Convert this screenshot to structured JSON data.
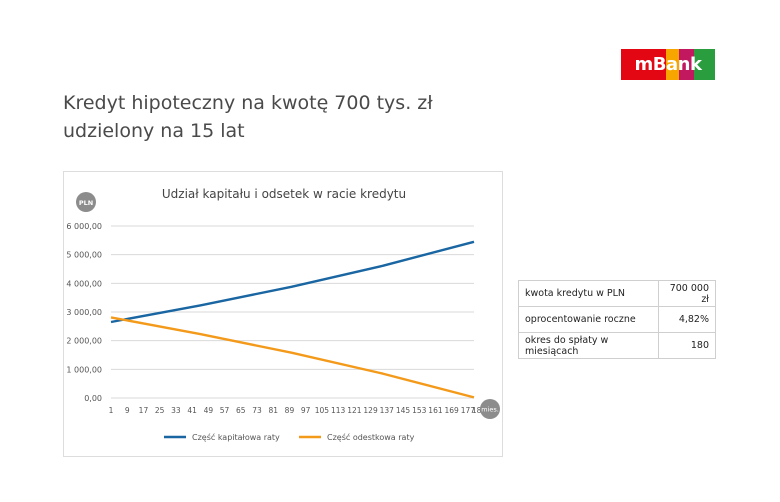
{
  "logo": {
    "text": "mBank",
    "colors": [
      "#e30613",
      "#f7a600",
      "#c1185f",
      "#2a9d3f"
    ]
  },
  "title": {
    "line1": "Kredyt hipoteczny na kwotę 700 tys. zł",
    "line2": "udzielony na 15 lat"
  },
  "info_table": [
    {
      "label": "kwota kredytu w PLN",
      "value": "700 000 zł"
    },
    {
      "label": "oprocentowanie roczne",
      "value": "4,82%"
    },
    {
      "label": "okres do spłaty w miesiącach",
      "value": "180"
    }
  ],
  "chart_data": {
    "type": "line",
    "title": "Udział kapitału i odsetek w racie kredytu",
    "ylabel": "PLN",
    "xlabel": "mies.",
    "ylim": [
      0,
      6000
    ],
    "xlim": [
      1,
      180
    ],
    "yticks": [
      0,
      1000,
      2000,
      3000,
      4000,
      5000,
      6000
    ],
    "ytick_labels": [
      "0,00",
      "1 000,00",
      "2 000,00",
      "3 000,00",
      "4 000,00",
      "5 000,00",
      "6 000,00"
    ],
    "xtick_labels": [
      "1",
      "9",
      "17",
      "25",
      "33",
      "41",
      "49",
      "57",
      "65",
      "73",
      "81",
      "89",
      "97",
      "105",
      "113",
      "121",
      "129",
      "137",
      "145",
      "153",
      "161",
      "169",
      "177",
      "180"
    ],
    "grid": true,
    "legend_position": "bottom",
    "series": [
      {
        "name": "Część kapitałowa raty",
        "color": "#1a66a2",
        "x": [
          1,
          45,
          90,
          135,
          180
        ],
        "values": [
          2650,
          3230,
          3880,
          4610,
          5450
        ]
      },
      {
        "name": "Część odestkowa raty",
        "color": "#f39a1b",
        "x": [
          1,
          45,
          90,
          135,
          180
        ],
        "values": [
          2810,
          2230,
          1580,
          850,
          20
        ]
      }
    ]
  }
}
